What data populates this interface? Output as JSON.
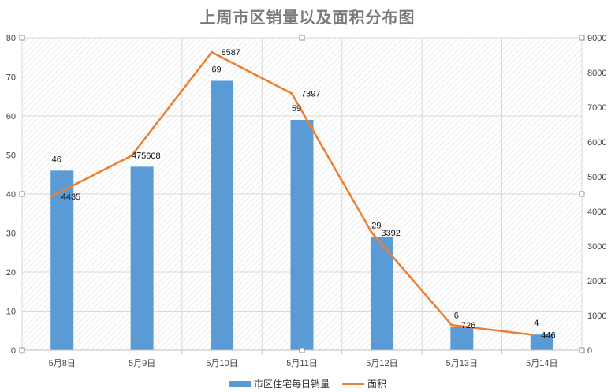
{
  "chart_data": {
    "type": "bar",
    "title": "上周市区销量以及面积分布图",
    "categories": [
      "5月8日",
      "5月9日",
      "5月10日",
      "5月11日",
      "5月12日",
      "5月13日",
      "5月14日"
    ],
    "series": [
      {
        "name": "市区住宅每日销量",
        "type": "bar",
        "axis": "left",
        "values": [
          46,
          47,
          69,
          59,
          29,
          6,
          4
        ],
        "color": "#5b9bd5"
      },
      {
        "name": "面积",
        "type": "line",
        "axis": "right",
        "values": [
          4435,
          5608,
          8587,
          7397,
          3392,
          726,
          446
        ],
        "color": "#ed7d31"
      }
    ],
    "ylim_left": [
      0,
      80
    ],
    "ylim_right": [
      0,
      9000
    ],
    "yticks_left": [
      0,
      10,
      20,
      30,
      40,
      50,
      60,
      70,
      80
    ],
    "yticks_right": [
      0,
      1000,
      2000,
      3000,
      4000,
      5000,
      6000,
      7000,
      8000,
      9000
    ],
    "grid": true,
    "legend": "bottom"
  }
}
